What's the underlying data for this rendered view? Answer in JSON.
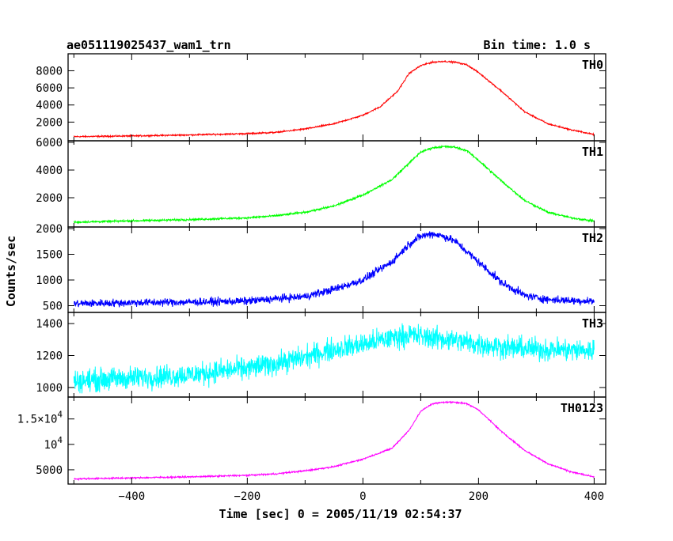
{
  "header": {
    "title": "ae051119025437_wam1_trn",
    "bin_time": "Bin time: 1.0 s"
  },
  "chart_data": {
    "type": "line",
    "title": "ae051119025437_wam1_trn",
    "subtitle": "Bin time: 1.0 s",
    "xlabel": "Time [sec] 0 = 2005/11/19 02:54:37",
    "ylabel": "Counts/sec",
    "xlim": [
      -510,
      420
    ],
    "xticks": [
      -400,
      -200,
      0,
      200,
      400
    ],
    "grid": false,
    "panels": [
      {
        "name": "TH0",
        "color": "#ff0000",
        "ylim": [
          0,
          9800
        ],
        "yticks": [
          {
            "value": 2000,
            "label": "2000"
          },
          {
            "value": 4000,
            "label": "4000"
          },
          {
            "value": 6000,
            "label": "6000"
          },
          {
            "value": 8000,
            "label": "8000"
          }
        ],
        "noise": 80,
        "x": [
          -500,
          -400,
          -300,
          -200,
          -150,
          -100,
          -50,
          0,
          30,
          60,
          80,
          100,
          120,
          140,
          160,
          180,
          200,
          240,
          280,
          320,
          360,
          400
        ],
        "y": [
          300,
          380,
          500,
          650,
          800,
          1200,
          1800,
          2800,
          3800,
          5600,
          7700,
          8600,
          9000,
          9100,
          9000,
          8700,
          7800,
          5600,
          3200,
          1800,
          1100,
          550
        ]
      },
      {
        "name": "TH1",
        "color": "#00ff00",
        "ylim": [
          0,
          6000
        ],
        "yticks": [
          {
            "value": 2000,
            "label": "2000"
          },
          {
            "value": 4000,
            "label": "4000"
          },
          {
            "value": 6000,
            "label": "6000"
          }
        ],
        "noise": 70,
        "x": [
          -500,
          -400,
          -300,
          -200,
          -150,
          -100,
          -50,
          0,
          50,
          80,
          100,
          120,
          140,
          160,
          180,
          200,
          240,
          280,
          320,
          360,
          400
        ],
        "y": [
          230,
          330,
          420,
          550,
          700,
          950,
          1400,
          2200,
          3300,
          4500,
          5300,
          5600,
          5700,
          5650,
          5400,
          4700,
          3200,
          1800,
          950,
          550,
          320
        ]
      },
      {
        "name": "TH2",
        "color": "#0000ff",
        "ylim": [
          400,
          2000
        ],
        "yticks": [
          {
            "value": 500,
            "label": "500"
          },
          {
            "value": 1000,
            "label": "1000"
          },
          {
            "value": 1500,
            "label": "1500"
          },
          {
            "value": 2000,
            "label": "2000"
          }
        ],
        "noise": 75,
        "x": [
          -500,
          -400,
          -300,
          -200,
          -100,
          -50,
          0,
          50,
          80,
          100,
          120,
          140,
          160,
          180,
          200,
          240,
          280,
          320,
          360,
          400
        ],
        "y": [
          540,
          560,
          570,
          590,
          680,
          820,
          1000,
          1350,
          1700,
          1850,
          1900,
          1850,
          1750,
          1550,
          1350,
          950,
          700,
          620,
          600,
          590
        ]
      },
      {
        "name": "TH3",
        "color": "#00ffff",
        "ylim": [
          950,
          1460
        ],
        "yticks": [
          {
            "value": 1000,
            "label": "1000"
          },
          {
            "value": 1200,
            "label": "1200"
          },
          {
            "value": 1400,
            "label": "1400"
          }
        ],
        "noise": 70,
        "x": [
          -500,
          -400,
          -300,
          -200,
          -150,
          -100,
          -50,
          0,
          50,
          80,
          100,
          150,
          200,
          250,
          300,
          350,
          400
        ],
        "y": [
          1040,
          1060,
          1080,
          1120,
          1150,
          1190,
          1240,
          1270,
          1310,
          1330,
          1320,
          1300,
          1270,
          1250,
          1240,
          1235,
          1230
        ]
      },
      {
        "name": "TH0123",
        "color": "#ff00ff",
        "ylim": [
          2500,
          19000
        ],
        "yticks": [
          {
            "value": 5000,
            "label": "5000"
          },
          {
            "value": 10000,
            "label": "10^4"
          },
          {
            "value": 15000,
            "label": "1.5x10^4"
          }
        ],
        "noise": 140,
        "x": [
          -500,
          -400,
          -300,
          -200,
          -150,
          -100,
          -50,
          0,
          50,
          80,
          100,
          120,
          140,
          160,
          180,
          200,
          240,
          280,
          320,
          360,
          400
        ],
        "y": [
          3200,
          3400,
          3600,
          3900,
          4200,
          4800,
          5600,
          7100,
          9200,
          12800,
          16500,
          18000,
          18300,
          18300,
          18000,
          16800,
          12500,
          8800,
          6200,
          4600,
          3600
        ]
      }
    ]
  }
}
